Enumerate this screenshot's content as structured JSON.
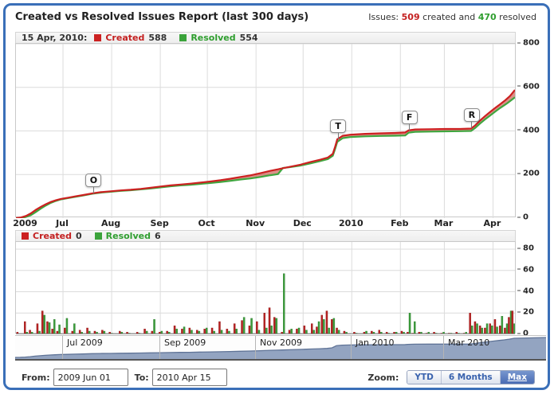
{
  "header": {
    "title": "Created vs Resolved Issues Report (last 300 days)",
    "summary_prefix": "Issues:",
    "created_total": "509",
    "summary_mid": "created and",
    "resolved_total": "470",
    "summary_suffix": "resolved"
  },
  "colors": {
    "created_line": "#cc2121",
    "created_fill": "rgba(190,55,40,0.55)",
    "resolved_line": "#3fa63f",
    "grid": "#dcdcdc",
    "nav_fill": "#93a4c1",
    "nav_stroke": "#5f7396",
    "frame_border": "#3a6fb8"
  },
  "main_chart": {
    "legend": {
      "date": "15 Apr, 2010:",
      "created_label": "Created",
      "created_value": "588",
      "resolved_label": "Resolved",
      "resolved_value": "554"
    }
  },
  "daily_chart": {
    "legend": {
      "created_label": "Created",
      "created_value": "0",
      "resolved_label": "Resolved",
      "resolved_value": "6"
    }
  },
  "controls": {
    "from_label": "From:",
    "from_value": "2009 Jun 01",
    "to_label": "To:",
    "to_value": "2010 Apr 15",
    "zoom_label": "Zoom:",
    "zoom_buttons": [
      {
        "label": "YTD",
        "active": false
      },
      {
        "label": "6 Months",
        "active": false
      },
      {
        "label": "Max",
        "active": true
      }
    ]
  },
  "chart_data": [
    {
      "type": "area",
      "title": "Cumulative created vs resolved issues",
      "x_range": [
        "2009 Jun 01",
        "2010 Apr 15"
      ],
      "ylim": [
        0,
        800
      ],
      "y_ticks": [
        0,
        200,
        400,
        600,
        800
      ],
      "legend_position": "top-left",
      "grid": true,
      "x_labels": [
        {
          "label": "2009",
          "f": 0.02,
          "grid": false
        },
        {
          "label": "Jul",
          "f": 0.0943,
          "grid": true
        },
        {
          "label": "Aug",
          "f": 0.1918,
          "grid": true
        },
        {
          "label": "Sep",
          "f": 0.2893,
          "grid": true
        },
        {
          "label": "Oct",
          "f": 0.3836,
          "grid": true
        },
        {
          "label": "Nov",
          "f": 0.4811,
          "grid": true
        },
        {
          "label": "Dec",
          "f": 0.5755,
          "grid": true
        },
        {
          "label": "2010",
          "f": 0.673,
          "grid": true
        },
        {
          "label": "Feb",
          "f": 0.7704,
          "grid": true
        },
        {
          "label": "Mar",
          "f": 0.8585,
          "grid": true
        },
        {
          "label": "Apr",
          "f": 0.956,
          "grid": true
        }
      ],
      "flags": [
        {
          "label": "O",
          "f": 0.154
        },
        {
          "label": "T",
          "f": 0.644
        },
        {
          "label": "F",
          "f": 0.787
        },
        {
          "label": "R",
          "f": 0.912
        }
      ],
      "series": [
        {
          "name": "Created",
          "final": 588,
          "points": [
            [
              0,
              0
            ],
            [
              0.01,
              3
            ],
            [
              0.02,
              10
            ],
            [
              0.03,
              22
            ],
            [
              0.04,
              38
            ],
            [
              0.05,
              52
            ],
            [
              0.06,
              64
            ],
            [
              0.07,
              74
            ],
            [
              0.08,
              82
            ],
            [
              0.09,
              88
            ],
            [
              0.105,
              94
            ],
            [
              0.12,
              100
            ],
            [
              0.135,
              106
            ],
            [
              0.154,
              114
            ],
            [
              0.17,
              119
            ],
            [
              0.19,
              123
            ],
            [
              0.21,
              127
            ],
            [
              0.23,
              130
            ],
            [
              0.25,
              134
            ],
            [
              0.27,
              139
            ],
            [
              0.29,
              145
            ],
            [
              0.31,
              150
            ],
            [
              0.33,
              154
            ],
            [
              0.35,
              158
            ],
            [
              0.37,
              163
            ],
            [
              0.39,
              168
            ],
            [
              0.41,
              174
            ],
            [
              0.43,
              181
            ],
            [
              0.45,
              189
            ],
            [
              0.47,
              196
            ],
            [
              0.49,
              206
            ],
            [
              0.51,
              217
            ],
            [
              0.525,
              224
            ],
            [
              0.535,
              229
            ],
            [
              0.55,
              236
            ],
            [
              0.57,
              245
            ],
            [
              0.59,
              257
            ],
            [
              0.61,
              268
            ],
            [
              0.625,
              278
            ],
            [
              0.635,
              295
            ],
            [
              0.64,
              330
            ],
            [
              0.644,
              362
            ],
            [
              0.655,
              378
            ],
            [
              0.67,
              383
            ],
            [
              0.7,
              387
            ],
            [
              0.73,
              389
            ],
            [
              0.76,
              391
            ],
            [
              0.78,
              393
            ],
            [
              0.787,
              403
            ],
            [
              0.8,
              407
            ],
            [
              0.83,
              408
            ],
            [
              0.86,
              409
            ],
            [
              0.89,
              409
            ],
            [
              0.912,
              411
            ],
            [
              0.92,
              425
            ],
            [
              0.93,
              448
            ],
            [
              0.94,
              468
            ],
            [
              0.95,
              487
            ],
            [
              0.96,
              505
            ],
            [
              0.97,
              522
            ],
            [
              0.98,
              540
            ],
            [
              0.99,
              560
            ],
            [
              1,
              588
            ]
          ]
        },
        {
          "name": "Resolved",
          "final": 554,
          "points": [
            [
              0,
              0
            ],
            [
              0.01,
              1
            ],
            [
              0.02,
              5
            ],
            [
              0.03,
              14
            ],
            [
              0.04,
              28
            ],
            [
              0.05,
              44
            ],
            [
              0.06,
              58
            ],
            [
              0.07,
              70
            ],
            [
              0.08,
              79
            ],
            [
              0.09,
              86
            ],
            [
              0.105,
              92
            ],
            [
              0.12,
              98
            ],
            [
              0.135,
              104
            ],
            [
              0.154,
              112
            ],
            [
              0.17,
              117
            ],
            [
              0.19,
              121
            ],
            [
              0.21,
              125
            ],
            [
              0.23,
              128
            ],
            [
              0.25,
              132
            ],
            [
              0.27,
              136
            ],
            [
              0.29,
              141
            ],
            [
              0.31,
              146
            ],
            [
              0.33,
              150
            ],
            [
              0.35,
              153
            ],
            [
              0.37,
              157
            ],
            [
              0.39,
              161
            ],
            [
              0.41,
              166
            ],
            [
              0.43,
              171
            ],
            [
              0.45,
              177
            ],
            [
              0.47,
              182
            ],
            [
              0.49,
              189
            ],
            [
              0.51,
              197
            ],
            [
              0.525,
              202
            ],
            [
              0.535,
              230
            ],
            [
              0.55,
              234
            ],
            [
              0.57,
              241
            ],
            [
              0.59,
              251
            ],
            [
              0.61,
              262
            ],
            [
              0.625,
              271
            ],
            [
              0.635,
              286
            ],
            [
              0.64,
              320
            ],
            [
              0.644,
              350
            ],
            [
              0.655,
              367
            ],
            [
              0.67,
              372
            ],
            [
              0.7,
              375
            ],
            [
              0.73,
              377
            ],
            [
              0.76,
              378
            ],
            [
              0.78,
              379
            ],
            [
              0.787,
              392
            ],
            [
              0.8,
              396
            ],
            [
              0.83,
              397
            ],
            [
              0.86,
              398
            ],
            [
              0.89,
              399
            ],
            [
              0.912,
              400
            ],
            [
              0.92,
              413
            ],
            [
              0.93,
              434
            ],
            [
              0.94,
              453
            ],
            [
              0.95,
              470
            ],
            [
              0.96,
              488
            ],
            [
              0.97,
              505
            ],
            [
              0.985,
              528
            ],
            [
              1,
              554
            ]
          ]
        }
      ]
    },
    {
      "type": "bar",
      "title": "Daily created vs resolved issues",
      "ylim": [
        0,
        80
      ],
      "y_ticks": [
        0,
        20,
        40,
        60,
        80
      ],
      "grid": true,
      "bars_format": "[x_fraction, created, resolved]",
      "bars": [
        [
          0.005,
          2,
          0
        ],
        [
          0.02,
          12,
          2
        ],
        [
          0.03,
          4,
          2
        ],
        [
          0.045,
          10,
          3
        ],
        [
          0.055,
          22,
          18
        ],
        [
          0.065,
          12,
          11
        ],
        [
          0.075,
          5,
          14
        ],
        [
          0.085,
          3,
          9
        ],
        [
          0.1,
          6,
          15
        ],
        [
          0.115,
          3,
          10
        ],
        [
          0.13,
          4,
          2
        ],
        [
          0.145,
          6,
          3
        ],
        [
          0.16,
          3,
          2
        ],
        [
          0.175,
          4,
          3
        ],
        [
          0.19,
          2,
          1
        ],
        [
          0.21,
          3,
          2
        ],
        [
          0.225,
          2,
          1
        ],
        [
          0.245,
          2,
          1
        ],
        [
          0.26,
          5,
          3
        ],
        [
          0.275,
          3,
          14
        ],
        [
          0.29,
          2,
          3
        ],
        [
          0.305,
          3,
          2
        ],
        [
          0.32,
          8,
          5
        ],
        [
          0.335,
          5,
          7
        ],
        [
          0.35,
          6,
          4
        ],
        [
          0.365,
          4,
          3
        ],
        [
          0.38,
          5,
          6
        ],
        [
          0.395,
          6,
          3
        ],
        [
          0.41,
          12,
          4
        ],
        [
          0.425,
          5,
          3
        ],
        [
          0.44,
          10,
          5
        ],
        [
          0.455,
          13,
          16
        ],
        [
          0.47,
          8,
          15
        ],
        [
          0.485,
          12,
          4
        ],
        [
          0.5,
          20,
          6
        ],
        [
          0.51,
          25,
          8
        ],
        [
          0.52,
          16,
          15
        ],
        [
          0.535,
          2,
          57
        ],
        [
          0.55,
          4,
          5
        ],
        [
          0.565,
          5,
          6
        ],
        [
          0.58,
          8,
          4
        ],
        [
          0.595,
          10,
          4
        ],
        [
          0.605,
          7,
          12
        ],
        [
          0.615,
          18,
          14
        ],
        [
          0.625,
          22,
          6
        ],
        [
          0.635,
          14,
          15
        ],
        [
          0.645,
          6,
          4
        ],
        [
          0.66,
          3,
          2
        ],
        [
          0.68,
          2,
          1
        ],
        [
          0.7,
          2,
          3
        ],
        [
          0.715,
          3,
          2
        ],
        [
          0.73,
          4,
          2
        ],
        [
          0.745,
          2,
          1
        ],
        [
          0.76,
          2,
          2
        ],
        [
          0.775,
          3,
          2
        ],
        [
          0.787,
          2,
          20
        ],
        [
          0.797,
          1,
          12
        ],
        [
          0.81,
          2,
          2
        ],
        [
          0.825,
          1,
          2
        ],
        [
          0.84,
          2,
          1
        ],
        [
          0.855,
          1,
          2
        ],
        [
          0.87,
          1,
          1
        ],
        [
          0.885,
          2,
          1
        ],
        [
          0.9,
          1,
          2
        ],
        [
          0.912,
          20,
          8
        ],
        [
          0.922,
          12,
          10
        ],
        [
          0.932,
          8,
          6
        ],
        [
          0.942,
          6,
          10
        ],
        [
          0.952,
          10,
          8
        ],
        [
          0.962,
          14,
          7
        ],
        [
          0.972,
          8,
          17
        ],
        [
          0.982,
          6,
          10
        ],
        [
          0.99,
          16,
          22
        ],
        [
          0.997,
          22,
          10
        ]
      ]
    },
    {
      "type": "area",
      "title": "Navigator (full range overview)",
      "labels": [
        {
          "label": "Jul 2009",
          "f": 0.0943
        },
        {
          "label": "Sep 2009",
          "f": 0.2893
        },
        {
          "label": "Nov 2009",
          "f": 0.4811
        },
        {
          "label": "Jan 2010",
          "f": 0.673
        },
        {
          "label": "Mar 2010",
          "f": 0.8585
        }
      ]
    }
  ]
}
